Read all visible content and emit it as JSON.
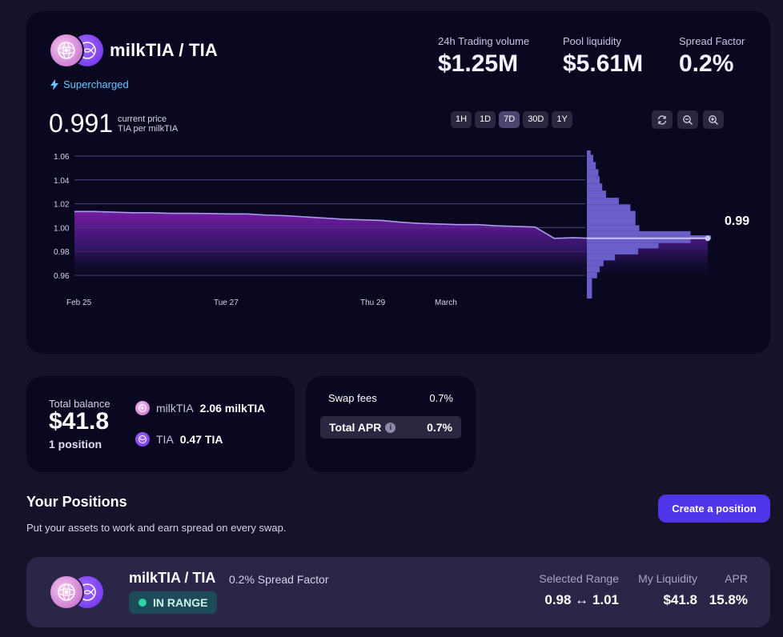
{
  "pool": {
    "title": "milkTIA / TIA",
    "supercharged": "Supercharged",
    "stats": [
      {
        "label": "24h Trading volume",
        "value": "$1.25M"
      },
      {
        "label": "Pool liquidity",
        "value": "$5.61M"
      },
      {
        "label": "Spread Factor",
        "value": "0.2%"
      }
    ],
    "current_price": "0.991",
    "current_price_label": "current price",
    "price_unit": "TIA per milkTIA",
    "time_ranges": [
      "1H",
      "1D",
      "7D",
      "30D",
      "1Y"
    ],
    "active_range": "7D",
    "icons": [
      "refresh-icon",
      "zoom-out-icon",
      "zoom-in-icon"
    ]
  },
  "chart_data": {
    "type": "area",
    "title": "",
    "xlabel": "",
    "ylabel": "",
    "x_tick_labels": [
      "Feb 25",
      "Tue 27",
      "Thu 29",
      "March"
    ],
    "y_tick_labels": [
      "1.06",
      "1.04",
      "1.02",
      "1.00",
      "0.98",
      "0.96"
    ],
    "ylim": [
      0.951,
      1.066
    ],
    "grid": true,
    "series": [
      {
        "values": [
          1.0135,
          1.0135,
          1.013,
          1.0125,
          1.0125,
          1.012,
          1.012,
          1.0118,
          1.0115,
          1.0115,
          1.0105,
          1.01,
          1.009,
          1.008,
          1.007,
          1.0065,
          1.006,
          1.0045,
          1.0035,
          1.003,
          1.0025,
          1.0025,
          1.0015,
          1.001,
          1.0005,
          0.991,
          0.9915,
          0.991,
          0.991,
          0.991,
          0.9915,
          0.9912,
          0.991,
          0.991
        ]
      }
    ],
    "current_price_label": "0.99",
    "liquidity_depth": {
      "prices": [
        1.064,
        1.058,
        1.052,
        1.046,
        1.04,
        1.034,
        1.028,
        1.022,
        1.017,
        1.011,
        1.005,
        0.999,
        0.995,
        0.992,
        0.989,
        0.985,
        0.98,
        0.975,
        0.97,
        0.965,
        0.96,
        0.955
      ],
      "depth": [
        0.03,
        0.05,
        0.07,
        0.09,
        0.1,
        0.12,
        0.15,
        0.25,
        0.34,
        0.38,
        0.38,
        0.41,
        0.81,
        0.97,
        0.81,
        0.56,
        0.4,
        0.22,
        0.13,
        0.1,
        0.08,
        0.04
      ]
    }
  },
  "balance": {
    "label": "Total balance",
    "value": "$41.8",
    "positions": "1 position",
    "assets": [
      {
        "symbol": "milkTIA",
        "amount": "2.06 milkTIA"
      },
      {
        "symbol": "TIA",
        "amount": "0.47 TIA"
      }
    ]
  },
  "apr": {
    "swap_fees_label": "Swap fees",
    "swap_fees_value": "0.7%",
    "total_apr_label": "Total APR",
    "total_apr_value": "0.7%"
  },
  "positions": {
    "title": "Your Positions",
    "subtitle": "Put your assets to work and earn spread on every swap.",
    "create_label": "Create a position",
    "items": [
      {
        "pair": "milkTIA / TIA",
        "spread": "0.2% Spread Factor",
        "status": "IN RANGE",
        "range_label": "Selected Range",
        "range_value": "0.98 ↔ 1.01",
        "liquidity_label": "My Liquidity",
        "liquidity_value": "$41.8",
        "apr_label": "APR",
        "apr_value": "15.8%"
      }
    ]
  },
  "colors": {
    "accent": "#4f36e8",
    "chart_line": "#a99cf0",
    "chart_fill": "#6b21a8",
    "depth_bar": "#6a5ec8",
    "in_range": "#29d6a6"
  }
}
